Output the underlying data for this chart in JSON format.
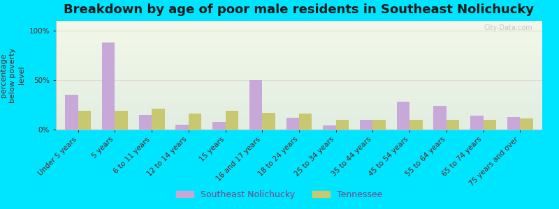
{
  "title": "Breakdown by age of poor male residents in Southeast Nolichucky",
  "ylabel": "percentage\nbelow poverty\nlevel",
  "categories": [
    "Under 5 years",
    "5 years",
    "6 to 11 years",
    "12 to 14 years",
    "15 years",
    "16 and 17 years",
    "18 to 24 years",
    "25 to 34 years",
    "35 to 44 years",
    "45 to 54 years",
    "55 to 64 years",
    "65 to 74 years",
    "75 years and over"
  ],
  "southeast_nolichucky": [
    35,
    88,
    15,
    5,
    8,
    50,
    12,
    4,
    10,
    28,
    24,
    14,
    13
  ],
  "tennessee": [
    19,
    19,
    21,
    16,
    19,
    17,
    16,
    10,
    10,
    10,
    10,
    10,
    11
  ],
  "bar_color_nolichucky": "#c8a8d8",
  "bar_color_tennessee": "#c8c870",
  "background_color_outer": "#00e5ff",
  "background_color_plot_top": "#f2f6e8",
  "background_color_plot_bottom": "#e0ece0",
  "title_color": "#1a1a1a",
  "ylabel_color": "#5a2020",
  "tick_color": "#5a2020",
  "grid_color": "#e0ddd0",
  "ylim": [
    0,
    110
  ],
  "yticks": [
    0,
    50,
    100
  ],
  "ytick_labels": [
    "0%",
    "50%",
    "100%"
  ],
  "legend_nolichucky": "Southeast Nolichucky",
  "legend_tennessee": "Tennessee",
  "bar_width": 0.35,
  "title_fontsize": 13,
  "label_fontsize": 7.5,
  "ylabel_fontsize": 8
}
